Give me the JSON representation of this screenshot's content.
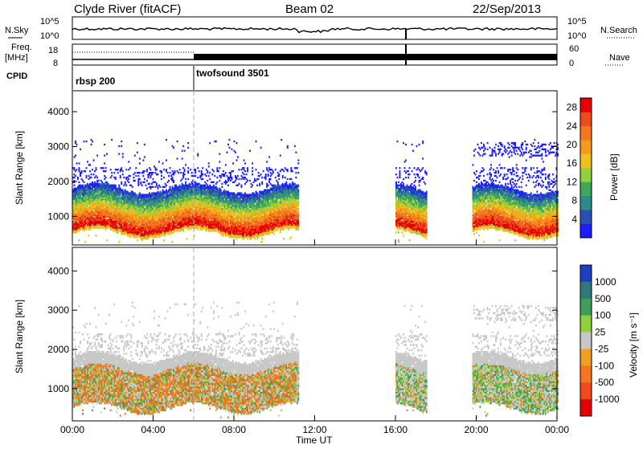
{
  "header": {
    "station": "Clyde River (fitACF)",
    "beam": "Beam 02",
    "date": "22/Sep/2013"
  },
  "summary_panel": {
    "nsky_label": "N.Sky",
    "nsearch_label": "N.Search",
    "freq_label_line1": "Freq.",
    "freq_label_line2": "[MHz]",
    "nave_label": "Nave",
    "cpid_label": "CPID",
    "nsky_ticks": [
      "10^5",
      "10^0"
    ],
    "nsearch_ticks": [
      "10^5",
      "10^0"
    ],
    "freq_ticks": [
      "18",
      "8"
    ],
    "nave_ticks": [
      "60",
      "0"
    ],
    "cpid_segments": [
      {
        "label": "rbsp 200",
        "start_hour": 0,
        "end_hour": 6
      },
      {
        "label": "twofsound 3501",
        "start_hour": 6,
        "end_hour": 24
      }
    ]
  },
  "chart_data": [
    {
      "type": "heatmap",
      "name": "power",
      "ylabel": "Slant Range [km]",
      "xlabel": "Time UT",
      "x_ticks": [
        "00:00",
        "04:00",
        "08:00",
        "12:00",
        "16:00",
        "20:00",
        "00:00"
      ],
      "x_range_hours": [
        0,
        24
      ],
      "y_ticks": [
        1000,
        2000,
        3000,
        4000
      ],
      "ylim": [
        180,
        4600
      ],
      "colorbar": {
        "label": "Power [dB]",
        "ticks": [
          4,
          8,
          12,
          16,
          20,
          24,
          28
        ],
        "range": [
          0,
          30
        ],
        "colors": [
          "#1c1cff",
          "#2a4fb5",
          "#2f8a8a",
          "#3fa65a",
          "#8fd13a",
          "#f0c020",
          "#f59a1c",
          "#f5761c",
          "#f04a1c",
          "#e60000"
        ]
      },
      "data_coverage_hours": [
        [
          0,
          11.2
        ],
        [
          16.0,
          17.5
        ],
        [
          19.8,
          24.0
        ]
      ],
      "main_echo_range_km": [
        600,
        1600
      ]
    },
    {
      "type": "heatmap",
      "name": "velocity",
      "ylabel": "Slant Range [km]",
      "xlabel": "Time UT",
      "x_ticks": [
        "00:00",
        "04:00",
        "08:00",
        "12:00",
        "16:00",
        "20:00",
        "00:00"
      ],
      "x_range_hours": [
        0,
        24
      ],
      "y_ticks": [
        1000,
        2000,
        3000,
        4000
      ],
      "ylim": [
        180,
        4600
      ],
      "colorbar": {
        "label": "Velocity [m s⁻¹]",
        "ticks": [
          1000,
          500,
          100,
          25,
          -25,
          -100,
          -500,
          -1000
        ],
        "colors": [
          "#1e3fbf",
          "#2e7a7a",
          "#3f9f5a",
          "#8fd13a",
          "#c8c8c8",
          "#f0a020",
          "#f5761c",
          "#f04a1c",
          "#e60000"
        ]
      },
      "data_coverage_hours": [
        [
          0,
          11.2
        ],
        [
          16.0,
          17.5
        ],
        [
          19.8,
          24.0
        ]
      ],
      "main_echo_range_km": [
        600,
        1600
      ]
    }
  ]
}
